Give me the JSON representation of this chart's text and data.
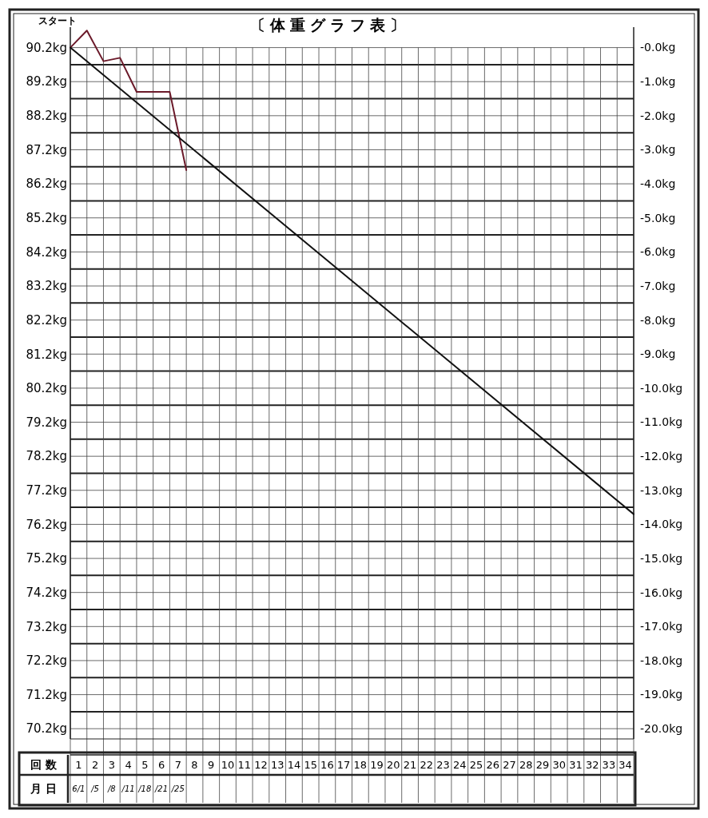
{
  "chart_data": {
    "type": "line",
    "title": "〔体重グラフ表〕",
    "xlabel": "回 数",
    "x2label": "月 日",
    "xlim": [
      0,
      34
    ],
    "xticks": [
      {
        "value": 0.5,
        "label": "1"
      },
      {
        "value": 1.5,
        "label": "2"
      },
      {
        "value": 2.5,
        "label": "3"
      },
      {
        "value": 3.5,
        "label": "4"
      },
      {
        "value": 4.5,
        "label": "5"
      },
      {
        "value": 5.5,
        "label": "6"
      },
      {
        "value": 6.5,
        "label": "7"
      },
      {
        "value": 7.5,
        "label": "8"
      },
      {
        "value": 8.5,
        "label": "9"
      },
      {
        "value": 9.5,
        "label": "10"
      },
      {
        "value": 10.5,
        "label": "11"
      },
      {
        "value": 11.5,
        "label": "12"
      },
      {
        "value": 12.5,
        "label": "13"
      },
      {
        "value": 13.5,
        "label": "14"
      },
      {
        "value": 14.5,
        "label": "15"
      },
      {
        "value": 15.5,
        "label": "16"
      },
      {
        "value": 16.5,
        "label": "17"
      },
      {
        "value": 17.5,
        "label": "18"
      },
      {
        "value": 18.5,
        "label": "19"
      },
      {
        "value": 19.5,
        "label": "20"
      },
      {
        "value": 20.5,
        "label": "21"
      },
      {
        "value": 21.5,
        "label": "22"
      },
      {
        "value": 22.5,
        "label": "23"
      },
      {
        "value": 23.5,
        "label": "24"
      },
      {
        "value": 24.5,
        "label": "25"
      },
      {
        "value": 25.5,
        "label": "26"
      },
      {
        "value": 26.5,
        "label": "27"
      },
      {
        "value": 27.5,
        "label": "28"
      },
      {
        "value": 28.5,
        "label": "29"
      },
      {
        "value": 29.5,
        "label": "30"
      },
      {
        "value": 30.5,
        "label": "31"
      },
      {
        "value": 31.5,
        "label": "32"
      },
      {
        "value": 32.5,
        "label": "33"
      },
      {
        "value": 33.5,
        "label": "34"
      }
    ],
    "ylim": [
      69.9,
      90.8
    ],
    "yticks": [
      {
        "value": 90.2,
        "label": "90.2kg"
      },
      {
        "value": 89.2,
        "label": "89.2kg"
      },
      {
        "value": 88.2,
        "label": "88.2kg"
      },
      {
        "value": 87.2,
        "label": "87.2kg"
      },
      {
        "value": 86.2,
        "label": "86.2kg"
      },
      {
        "value": 85.2,
        "label": "85.2kg"
      },
      {
        "value": 84.2,
        "label": "84.2kg"
      },
      {
        "value": 83.2,
        "label": "83.2kg"
      },
      {
        "value": 82.2,
        "label": "82.2kg"
      },
      {
        "value": 81.2,
        "label": "81.2kg"
      },
      {
        "value": 80.2,
        "label": "80.2kg"
      },
      {
        "value": 79.2,
        "label": "79.2kg"
      },
      {
        "value": 78.2,
        "label": "78.2kg"
      },
      {
        "value": 77.2,
        "label": "77.2kg"
      },
      {
        "value": 76.2,
        "label": "76.2kg"
      },
      {
        "value": 75.2,
        "label": "75.2kg"
      },
      {
        "value": 74.2,
        "label": "74.2kg"
      },
      {
        "value": 73.2,
        "label": "73.2kg"
      },
      {
        "value": 72.2,
        "label": "72.2kg"
      },
      {
        "value": 71.2,
        "label": "71.2kg"
      },
      {
        "value": 70.2,
        "label": "70.2kg"
      }
    ],
    "y2lim": [
      -20.3,
      0.6
    ],
    "y2ticks": [
      {
        "value": 0,
        "label": "-0.0kg"
      },
      {
        "value": -1,
        "label": "-1.0kg"
      },
      {
        "value": -2,
        "label": "-2.0kg"
      },
      {
        "value": -3,
        "label": "-3.0kg"
      },
      {
        "value": -4,
        "label": "-4.0kg"
      },
      {
        "value": -5,
        "label": "-5.0kg"
      },
      {
        "value": -6,
        "label": "-6.0kg"
      },
      {
        "value": -7,
        "label": "-7.0kg"
      },
      {
        "value": -8,
        "label": "-8.0kg"
      },
      {
        "value": -9,
        "label": "-9.0kg"
      },
      {
        "value": -10,
        "label": "-10.0kg"
      },
      {
        "value": -11,
        "label": "-11.0kg"
      },
      {
        "value": -12,
        "label": "-12.0kg"
      },
      {
        "value": -13,
        "label": "-13.0kg"
      },
      {
        "value": -14,
        "label": "-14.0kg"
      },
      {
        "value": -15,
        "label": "-15.0kg"
      },
      {
        "value": -16,
        "label": "-16.0kg"
      },
      {
        "value": -17,
        "label": "-17.0kg"
      },
      {
        "value": -18,
        "label": "-18.0kg"
      },
      {
        "value": -19,
        "label": "-19.0kg"
      },
      {
        "value": -20,
        "label": "-20.0kg"
      }
    ],
    "grid": true,
    "marker": "none",
    "line_style": "solid",
    "annotations": [
      {
        "text": "スタート",
        "x": 0,
        "y": 90.2
      },
      "6/1",
      "/5",
      "/8",
      "/11",
      "/18",
      "/21",
      "/25"
    ],
    "series": [
      {
        "color": "#6b1a2a",
        "x": [
          0,
          1,
          2,
          3,
          4,
          5,
          6,
          7
        ],
        "values": [
          90.2,
          90.7,
          89.8,
          89.9,
          88.9,
          88.9,
          88.9,
          86.6
        ]
      },
      {
        "color": "#111111",
        "x": [
          0,
          34
        ],
        "values": [
          90.2,
          76.5
        ]
      }
    ]
  }
}
